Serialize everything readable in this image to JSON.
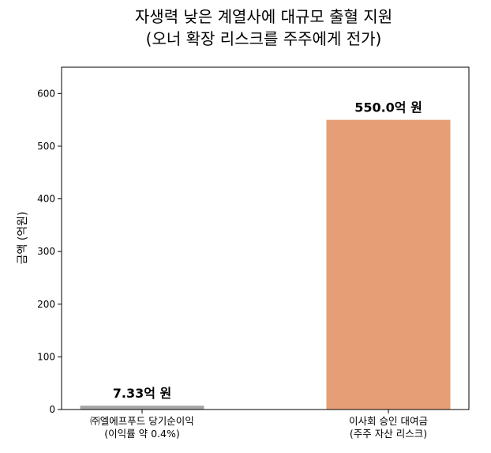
{
  "chart_data": {
    "type": "bar",
    "title_lines": [
      "자생력 낮은 계열사에 대규모 출혈 지원",
      "(오너 확장 리스크를 주주에게 전가)"
    ],
    "ylabel": "금액 (억원)",
    "xlabel": "",
    "ylim": [
      0,
      650
    ],
    "yticks": [
      0,
      100,
      200,
      300,
      400,
      500,
      600
    ],
    "grid": false,
    "categories": [
      {
        "line1": "㈜엘에프푸드 당기순이익",
        "line2": "(이익률 약 0.4%)"
      },
      {
        "line1": "이사회 승인 대여금",
        "line2": "(주주 자산 리스크)"
      }
    ],
    "values": [
      7.33,
      550.0
    ],
    "data_labels": [
      "7.33억 원",
      "550.0억 원"
    ],
    "colors": [
      "#a6a6a6",
      "#e59e76"
    ]
  }
}
